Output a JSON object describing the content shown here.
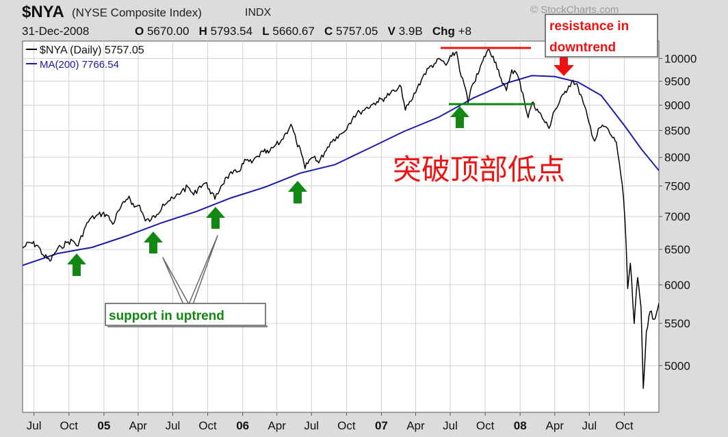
{
  "header": {
    "symbol": "$NYA",
    "name": "(NYSE Composite Index)",
    "exchange": "INDX",
    "watermark": "© StockCharts.com",
    "date": "31-Dec-2008",
    "o_label": "O",
    "o_value": "5670.00",
    "h_label": "H",
    "h_value": "5793.54",
    "l_label": "L",
    "l_value": "5660.67",
    "c_label": "C",
    "c_value": "5757.05",
    "v_label": "V",
    "v_value": "3.9B",
    "chg_label": "Chg",
    "chg_value": "+8"
  },
  "legend": {
    "price": "$NYA (Daily) 5757.05",
    "ma": "MA(200) 7766.54"
  },
  "annotations": {
    "chinese": "突破顶部低点",
    "support": "support in uptrend",
    "resistance_line1": "resistance in",
    "resistance_line2": "downtrend"
  },
  "colors": {
    "price": "#000000",
    "ma": "#1a1aa8",
    "support_arrow": "#118811",
    "resistance_arrow": "#ee1111",
    "resistance_line": "#ee1111",
    "support_line": "#118811",
    "chinese_text": "#ee1111",
    "plot_bg": "#ffffff",
    "grid": "#d0d0d0"
  },
  "chart_data": {
    "type": "line",
    "y_scale": "log",
    "ylim": [
      4500,
      10400
    ],
    "y_ticks": [
      5000,
      5500,
      6000,
      6500,
      7000,
      7500,
      8000,
      8500,
      9000,
      9500,
      10000
    ],
    "xlim": [
      "2004-06-01",
      "2008-12-31"
    ],
    "x_ticks": [
      {
        "label": "Jul",
        "date": "2004-07-01"
      },
      {
        "label": "Oct",
        "date": "2004-10-01"
      },
      {
        "label": "05",
        "date": "2005-01-01",
        "bold": true
      },
      {
        "label": "Apr",
        "date": "2005-04-01"
      },
      {
        "label": "Jul",
        "date": "2005-07-01"
      },
      {
        "label": "Oct",
        "date": "2005-10-01"
      },
      {
        "label": "06",
        "date": "2006-01-01",
        "bold": true
      },
      {
        "label": "Apr",
        "date": "2006-04-01"
      },
      {
        "label": "Jul",
        "date": "2006-07-01"
      },
      {
        "label": "Oct",
        "date": "2006-10-01"
      },
      {
        "label": "07",
        "date": "2007-01-01",
        "bold": true
      },
      {
        "label": "Apr",
        "date": "2007-04-01"
      },
      {
        "label": "Jul",
        "date": "2007-07-01"
      },
      {
        "label": "Oct",
        "date": "2007-10-01"
      },
      {
        "label": "08",
        "date": "2008-01-01",
        "bold": true
      },
      {
        "label": "Apr",
        "date": "2008-04-01"
      },
      {
        "label": "Jul",
        "date": "2008-07-01"
      },
      {
        "label": "Oct",
        "date": "2008-10-01"
      }
    ],
    "series": [
      {
        "name": "$NYA (Daily)",
        "points": [
          [
            "2004-06-01",
            6520
          ],
          [
            "2004-06-20",
            6600
          ],
          [
            "2004-07-10",
            6560
          ],
          [
            "2004-07-25",
            6420
          ],
          [
            "2004-08-12",
            6330
          ],
          [
            "2004-08-25",
            6450
          ],
          [
            "2004-09-10",
            6540
          ],
          [
            "2004-09-25",
            6600
          ],
          [
            "2004-10-10",
            6630
          ],
          [
            "2004-10-25",
            6550
          ],
          [
            "2004-11-10",
            6800
          ],
          [
            "2004-11-25",
            6960
          ],
          [
            "2004-12-10",
            7000
          ],
          [
            "2004-12-28",
            7050
          ],
          [
            "2005-01-10",
            7020
          ],
          [
            "2005-01-24",
            6880
          ],
          [
            "2005-02-10",
            7100
          ],
          [
            "2005-02-25",
            7230
          ],
          [
            "2005-03-08",
            7330
          ],
          [
            "2005-03-22",
            7150
          ],
          [
            "2005-04-05",
            7180
          ],
          [
            "2005-04-20",
            6930
          ],
          [
            "2005-05-05",
            6950
          ],
          [
            "2005-05-20",
            7030
          ],
          [
            "2005-06-05",
            7200
          ],
          [
            "2005-06-20",
            7250
          ],
          [
            "2005-07-05",
            7290
          ],
          [
            "2005-07-25",
            7420
          ],
          [
            "2005-08-10",
            7480
          ],
          [
            "2005-08-25",
            7350
          ],
          [
            "2005-09-10",
            7500
          ],
          [
            "2005-09-25",
            7550
          ],
          [
            "2005-10-05",
            7450
          ],
          [
            "2005-10-20",
            7280
          ],
          [
            "2005-11-05",
            7500
          ],
          [
            "2005-11-20",
            7650
          ],
          [
            "2005-12-05",
            7710
          ],
          [
            "2005-12-20",
            7750
          ],
          [
            "2006-01-10",
            7950
          ],
          [
            "2006-01-25",
            7900
          ],
          [
            "2006-02-10",
            8020
          ],
          [
            "2006-02-25",
            8100
          ],
          [
            "2006-03-10",
            8080
          ],
          [
            "2006-03-25",
            8200
          ],
          [
            "2006-04-10",
            8280
          ],
          [
            "2006-04-25",
            8450
          ],
          [
            "2006-05-08",
            8620
          ],
          [
            "2006-05-22",
            8300
          ],
          [
            "2006-06-05",
            8050
          ],
          [
            "2006-06-14",
            7800
          ],
          [
            "2006-06-25",
            7950
          ],
          [
            "2006-07-10",
            8020
          ],
          [
            "2006-07-20",
            7900
          ],
          [
            "2006-08-05",
            8100
          ],
          [
            "2006-08-20",
            8280
          ],
          [
            "2006-09-05",
            8380
          ],
          [
            "2006-09-20",
            8450
          ],
          [
            "2006-10-05",
            8600
          ],
          [
            "2006-10-20",
            8780
          ],
          [
            "2006-11-05",
            8860
          ],
          [
            "2006-11-20",
            8930
          ],
          [
            "2006-12-05",
            9000
          ],
          [
            "2006-12-20",
            9070
          ],
          [
            "2007-01-10",
            9150
          ],
          [
            "2007-01-25",
            9250
          ],
          [
            "2007-02-10",
            9300
          ],
          [
            "2007-02-22",
            9380
          ],
          [
            "2007-03-05",
            8900
          ],
          [
            "2007-03-20",
            9080
          ],
          [
            "2007-04-05",
            9350
          ],
          [
            "2007-04-20",
            9600
          ],
          [
            "2007-05-05",
            9780
          ],
          [
            "2007-05-20",
            9880
          ],
          [
            "2007-06-05",
            9980
          ],
          [
            "2007-06-20",
            9850
          ],
          [
            "2007-07-05",
            10050
          ],
          [
            "2007-07-18",
            10150
          ],
          [
            "2007-07-30",
            9600
          ],
          [
            "2007-08-10",
            9350
          ],
          [
            "2007-08-17",
            9050
          ],
          [
            "2007-08-30",
            9450
          ],
          [
            "2007-09-12",
            9650
          ],
          [
            "2007-09-25",
            9950
          ],
          [
            "2007-10-08",
            10200
          ],
          [
            "2007-10-22",
            10050
          ],
          [
            "2007-11-05",
            9750
          ],
          [
            "2007-11-15",
            9450
          ],
          [
            "2007-11-26",
            9300
          ],
          [
            "2007-12-10",
            9750
          ],
          [
            "2007-12-24",
            9650
          ],
          [
            "2008-01-08",
            9250
          ],
          [
            "2008-01-22",
            8750
          ],
          [
            "2008-02-01",
            9050
          ],
          [
            "2008-02-15",
            8920
          ],
          [
            "2008-03-03",
            8700
          ],
          [
            "2008-03-17",
            8540
          ],
          [
            "2008-03-28",
            8850
          ],
          [
            "2008-04-10",
            9000
          ],
          [
            "2008-04-25",
            9230
          ],
          [
            "2008-05-08",
            9400
          ],
          [
            "2008-05-19",
            9520
          ],
          [
            "2008-06-02",
            9350
          ],
          [
            "2008-06-15",
            9050
          ],
          [
            "2008-06-30",
            8650
          ],
          [
            "2008-07-15",
            8300
          ],
          [
            "2008-07-28",
            8550
          ],
          [
            "2008-08-12",
            8580
          ],
          [
            "2008-08-28",
            8400
          ],
          [
            "2008-09-10",
            8280
          ],
          [
            "2008-09-18",
            7900
          ],
          [
            "2008-09-29",
            7300
          ],
          [
            "2008-10-06",
            6550
          ],
          [
            "2008-10-10",
            5950
          ],
          [
            "2008-10-17",
            6300
          ],
          [
            "2008-10-27",
            5500
          ],
          [
            "2008-11-05",
            6100
          ],
          [
            "2008-11-14",
            5700
          ],
          [
            "2008-11-20",
            4750
          ],
          [
            "2008-11-28",
            5400
          ],
          [
            "2008-12-08",
            5650
          ],
          [
            "2008-12-18",
            5550
          ],
          [
            "2008-12-31",
            5757
          ]
        ]
      },
      {
        "name": "MA(200)",
        "points": [
          [
            "2004-06-01",
            6270
          ],
          [
            "2004-09-01",
            6440
          ],
          [
            "2004-12-01",
            6530
          ],
          [
            "2005-03-01",
            6700
          ],
          [
            "2005-06-01",
            6900
          ],
          [
            "2005-09-01",
            7080
          ],
          [
            "2005-12-01",
            7300
          ],
          [
            "2006-03-01",
            7480
          ],
          [
            "2006-06-01",
            7720
          ],
          [
            "2006-09-01",
            7870
          ],
          [
            "2006-12-01",
            8170
          ],
          [
            "2007-03-01",
            8480
          ],
          [
            "2007-06-01",
            8760
          ],
          [
            "2007-09-01",
            9150
          ],
          [
            "2007-12-01",
            9470
          ],
          [
            "2008-02-01",
            9620
          ],
          [
            "2008-04-01",
            9600
          ],
          [
            "2008-06-01",
            9480
          ],
          [
            "2008-08-01",
            9200
          ],
          [
            "2008-10-01",
            8600
          ],
          [
            "2008-11-15",
            8150
          ],
          [
            "2008-12-31",
            7767
          ]
        ]
      }
    ]
  }
}
